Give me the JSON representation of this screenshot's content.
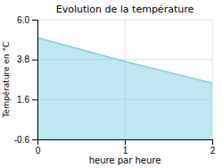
{
  "chart_data": {
    "type": "area",
    "title": "Evolution de la température",
    "xlabel": "heure par heure",
    "ylabel": "Température en °C",
    "x": [
      0,
      0.5,
      1.0,
      1.5,
      2.0
    ],
    "values": [
      5.0,
      4.35,
      3.7,
      3.1,
      2.5
    ],
    "color": "#7dcfdf",
    "xlim": [
      0,
      2
    ],
    "ylim": [
      -0.6,
      6.0
    ],
    "xticks": [
      0,
      1,
      2
    ],
    "yticks": [
      -0.6,
      1.6,
      3.8,
      {
        "value": 6.0,
        "label": "6.0"
      }
    ],
    "grid": true
  }
}
